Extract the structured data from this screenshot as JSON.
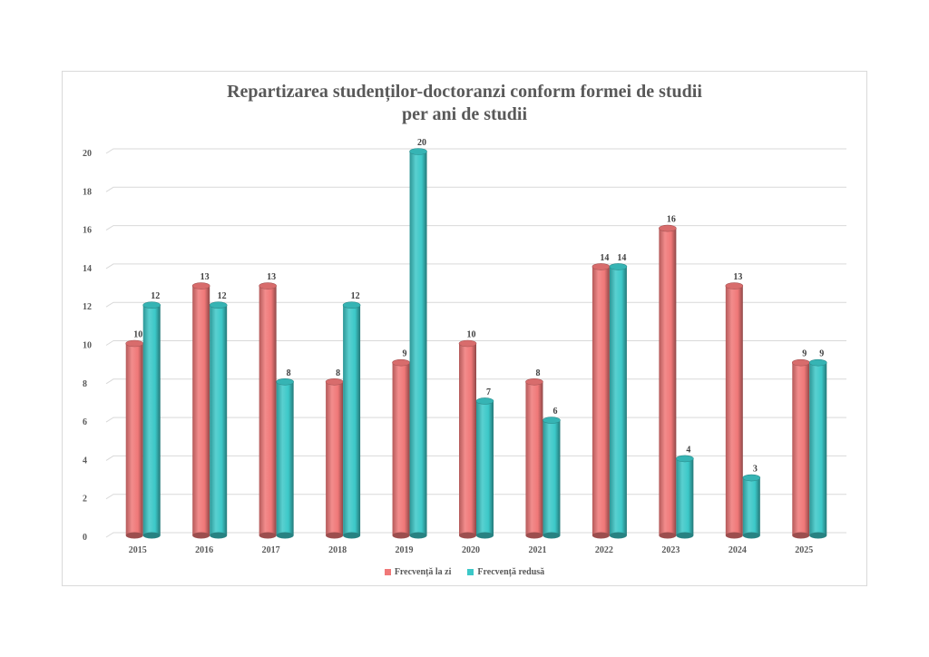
{
  "chart_data": {
    "type": "bar",
    "title": "Repartizarea studenților-doctoranzi conform formei de studii per ani de studii",
    "title_lines": [
      "Repartizarea studenților-doctoranzi conform formei de studii",
      "per ani de studii"
    ],
    "categories": [
      "2015",
      "2016",
      "2017",
      "2018",
      "2019",
      "2020",
      "2021",
      "2022",
      "2023",
      "2024",
      "2025"
    ],
    "series": [
      {
        "name": "Frecvență la zi",
        "color": "#f07878",
        "values": [
          10,
          13,
          13,
          8,
          9,
          10,
          8,
          14,
          16,
          13,
          9
        ]
      },
      {
        "name": "Frecvență redusă",
        "color": "#3cc8c8",
        "values": [
          12,
          12,
          8,
          12,
          20,
          7,
          6,
          14,
          4,
          3,
          9
        ]
      }
    ],
    "y_ticks": [
      0,
      2,
      4,
      6,
      8,
      10,
      12,
      14,
      16,
      18,
      20
    ],
    "ylim": [
      0,
      20
    ],
    "xlabel": "",
    "ylabel": "",
    "grid": true,
    "legend_position": "bottom",
    "data_labels": true
  }
}
